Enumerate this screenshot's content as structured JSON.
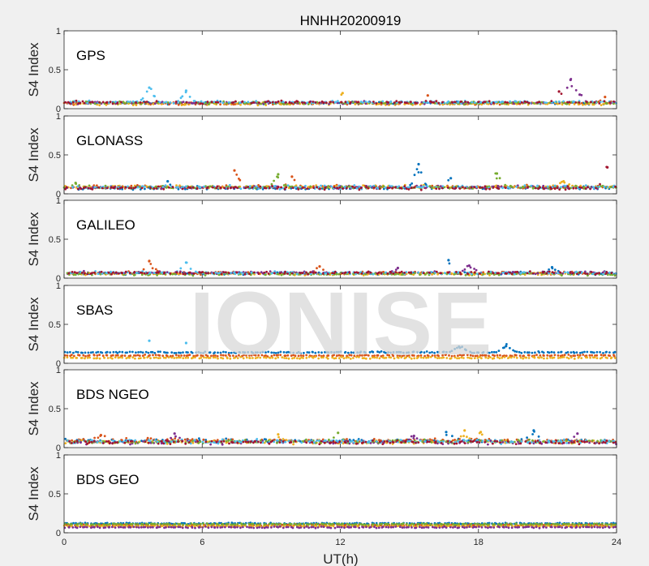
{
  "chart_data": {
    "type": "scatter",
    "title": "HNHH20200919",
    "xlabel": "UT(h)",
    "ylabel": "S4 Index",
    "xlim": [
      0,
      24
    ],
    "ylim": [
      0,
      1
    ],
    "xticks": [
      "0",
      "6",
      "12",
      "18",
      "24"
    ],
    "yticks": [
      "0",
      "0.5",
      "1"
    ],
    "grid": false,
    "watermark": "IONISE",
    "colors": [
      "#0072BD",
      "#D95319",
      "#EDB120",
      "#7E2F8E",
      "#77AC30",
      "#4DBEEE",
      "#A2142F"
    ],
    "panels": [
      {
        "name": "GPS",
        "baseline": 0.07,
        "spread": 0.025,
        "series_count": 7,
        "peaks": [
          {
            "x": 3.7,
            "y": 0.27,
            "series": 5
          },
          {
            "x": 5.3,
            "y": 0.23,
            "series": 5
          },
          {
            "x": 12.1,
            "y": 0.2,
            "series": 2
          },
          {
            "x": 15.8,
            "y": 0.17,
            "series": 1
          },
          {
            "x": 21.5,
            "y": 0.22,
            "series": 6
          },
          {
            "x": 22.0,
            "y": 0.37,
            "series": 3
          },
          {
            "x": 22.4,
            "y": 0.18,
            "series": 3
          },
          {
            "x": 23.5,
            "y": 0.15,
            "series": 1
          }
        ]
      },
      {
        "name": "GLONASS",
        "baseline": 0.08,
        "spread": 0.03,
        "series_count": 7,
        "peaks": [
          {
            "x": 0.5,
            "y": 0.14,
            "series": 4
          },
          {
            "x": 4.5,
            "y": 0.16,
            "series": 0
          },
          {
            "x": 7.4,
            "y": 0.3,
            "series": 1
          },
          {
            "x": 9.3,
            "y": 0.25,
            "series": 4
          },
          {
            "x": 9.9,
            "y": 0.22,
            "series": 1
          },
          {
            "x": 15.4,
            "y": 0.38,
            "series": 0
          },
          {
            "x": 16.8,
            "y": 0.2,
            "series": 0
          },
          {
            "x": 18.8,
            "y": 0.26,
            "series": 4
          },
          {
            "x": 23.6,
            "y": 0.34,
            "series": 6
          },
          {
            "x": 21.7,
            "y": 0.16,
            "series": 2
          }
        ]
      },
      {
        "name": "GALILEO",
        "baseline": 0.06,
        "spread": 0.025,
        "series_count": 7,
        "peaks": [
          {
            "x": 3.7,
            "y": 0.22,
            "series": 1
          },
          {
            "x": 5.3,
            "y": 0.2,
            "series": 5
          },
          {
            "x": 11.1,
            "y": 0.15,
            "series": 1
          },
          {
            "x": 14.5,
            "y": 0.13,
            "series": 3
          },
          {
            "x": 16.7,
            "y": 0.23,
            "series": 0
          },
          {
            "x": 17.6,
            "y": 0.16,
            "series": 3
          },
          {
            "x": 21.2,
            "y": 0.14,
            "series": 0
          }
        ]
      },
      {
        "name": "SBAS",
        "baseline": 0.1,
        "spread": 0.015,
        "series_count": 3,
        "bands": [
          0.14,
          0.1,
          0.07
        ],
        "peaks": [
          {
            "x": 3.7,
            "y": 0.29,
            "series": 5
          },
          {
            "x": 5.3,
            "y": 0.26,
            "series": 5
          },
          {
            "x": 17.2,
            "y": 0.2,
            "series": 0
          },
          {
            "x": 19.2,
            "y": 0.22,
            "series": 0
          }
        ]
      },
      {
        "name": "BDS NGEO",
        "baseline": 0.08,
        "spread": 0.035,
        "series_count": 7,
        "peaks": [
          {
            "x": 1.6,
            "y": 0.16,
            "series": 1
          },
          {
            "x": 4.8,
            "y": 0.18,
            "series": 3
          },
          {
            "x": 9.3,
            "y": 0.17,
            "series": 2
          },
          {
            "x": 11.9,
            "y": 0.19,
            "series": 4
          },
          {
            "x": 15.2,
            "y": 0.15,
            "series": 3
          },
          {
            "x": 16.6,
            "y": 0.2,
            "series": 0
          },
          {
            "x": 17.4,
            "y": 0.22,
            "series": 2
          },
          {
            "x": 18.1,
            "y": 0.2,
            "series": 2
          },
          {
            "x": 20.4,
            "y": 0.22,
            "series": 0
          },
          {
            "x": 22.3,
            "y": 0.18,
            "series": 3
          }
        ]
      },
      {
        "name": "BDS GEO",
        "baseline": 0.09,
        "spread": 0.012,
        "series_count": 5,
        "bands": [
          0.12,
          0.1,
          0.085,
          0.07,
          0.11
        ],
        "peaks": []
      }
    ]
  }
}
